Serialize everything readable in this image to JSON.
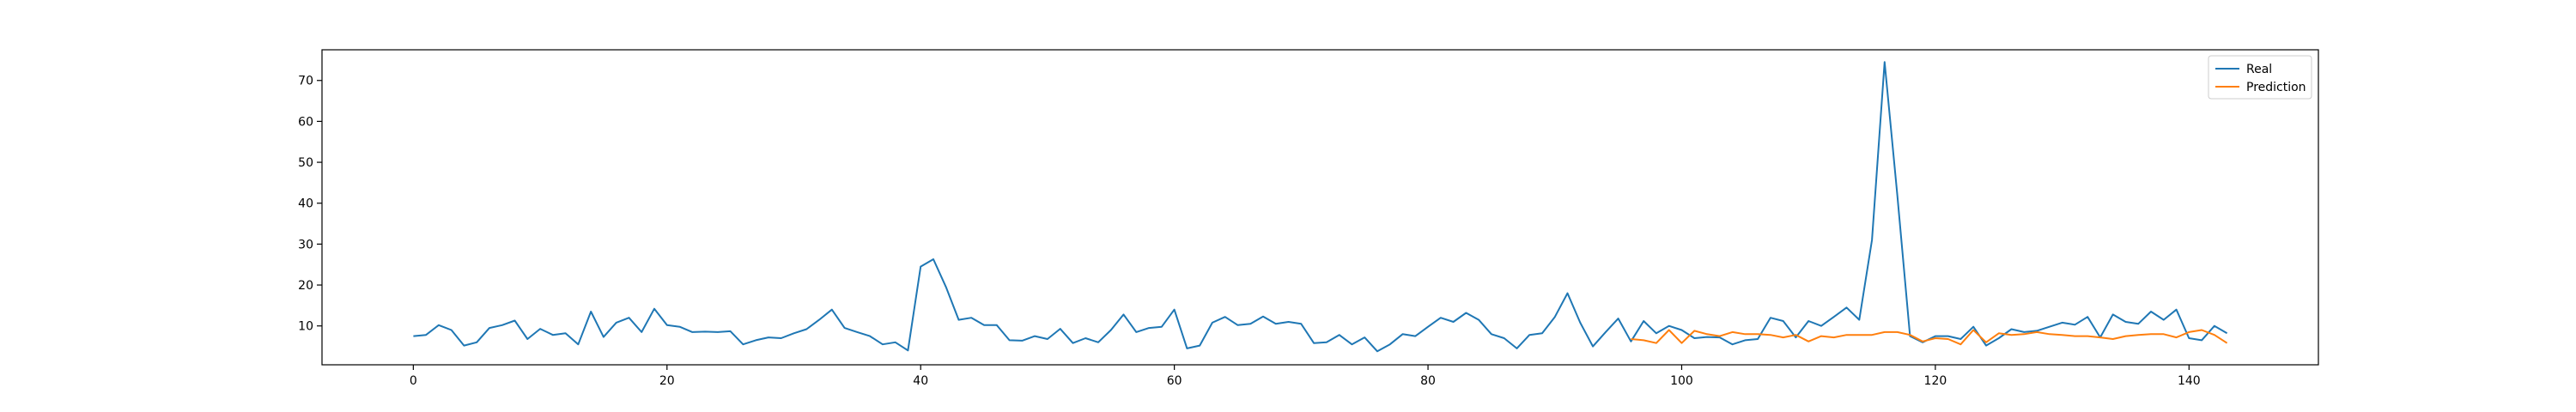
{
  "chart_data": {
    "type": "line",
    "title": "",
    "xlabel": "",
    "ylabel": "",
    "xlim": [
      -7.2,
      150.2
    ],
    "ylim": [
      0.5,
      77.5
    ],
    "x_ticks": [
      0,
      20,
      40,
      60,
      80,
      100,
      120,
      140
    ],
    "y_ticks": [
      10,
      20,
      30,
      40,
      50,
      60,
      70
    ],
    "grid": false,
    "legend_position": "top-right",
    "colors": {
      "Real": "#1f77b4",
      "Prediction": "#ff7f0e"
    },
    "series": [
      {
        "name": "Real",
        "x_start": 0,
        "values": [
          7.5,
          7.8,
          10.2,
          9.0,
          5.2,
          6.0,
          9.5,
          10.2,
          11.3,
          6.8,
          9.3,
          7.8,
          8.2,
          5.5,
          13.5,
          7.3,
          10.8,
          12.0,
          8.5,
          14.2,
          10.2,
          9.8,
          8.5,
          8.6,
          8.5,
          8.7,
          5.5,
          6.5,
          7.2,
          7.0,
          8.2,
          9.2,
          11.5,
          14.0,
          9.5,
          8.5,
          7.5,
          5.5,
          6.0,
          4.0,
          24.5,
          26.3,
          19.5,
          11.5,
          12.0,
          10.2,
          10.2,
          6.5,
          6.4,
          7.5,
          6.8,
          9.3,
          5.8,
          7.0,
          6.0,
          9.0,
          12.8,
          8.5,
          9.5,
          9.8,
          14.0,
          4.5,
          5.2,
          10.8,
          12.2,
          10.2,
          10.5,
          12.3,
          10.5,
          11.0,
          10.5,
          5.8,
          6.0,
          7.8,
          5.5,
          7.2,
          3.8,
          5.5,
          8.0,
          7.5,
          9.8,
          12.0,
          11.0,
          13.2,
          11.5,
          8.0,
          7.0,
          4.5,
          7.8,
          8.2,
          12.2,
          18.0,
          10.8,
          5.0,
          8.5,
          11.8,
          6.2,
          11.2,
          8.2,
          10.0,
          9.0,
          7.0,
          7.3,
          7.2,
          5.5,
          6.5,
          6.8,
          12.0,
          11.2,
          7.2,
          11.2,
          10.0,
          12.2,
          14.5,
          11.5,
          31.0,
          74.5,
          42.0,
          7.5,
          6.0,
          7.5,
          7.5,
          6.8,
          9.8,
          5.2,
          7.0,
          9.2,
          8.5,
          8.8,
          9.8,
          10.8,
          10.3,
          12.2,
          7.2,
          12.8,
          11.0,
          10.5,
          13.5,
          11.5,
          14.0,
          7.0,
          6.5,
          10.0,
          8.2
        ]
      },
      {
        "name": "Prediction",
        "x_start": 96,
        "values": [
          6.8,
          6.5,
          5.8,
          9.0,
          5.8,
          8.8,
          8.0,
          7.5,
          8.5,
          8.0,
          8.0,
          7.8,
          7.2,
          7.8,
          6.2,
          7.5,
          7.2,
          7.8,
          7.8,
          7.8,
          8.5,
          8.5,
          7.8,
          6.2,
          7.0,
          6.8,
          5.5,
          9.0,
          6.0,
          8.2,
          7.8,
          8.0,
          8.5,
          8.0,
          7.8,
          7.5,
          7.5,
          7.2,
          6.8,
          7.5,
          7.8,
          8.0,
          8.0,
          7.2,
          8.5,
          9.0,
          7.8,
          5.8
        ]
      }
    ]
  }
}
